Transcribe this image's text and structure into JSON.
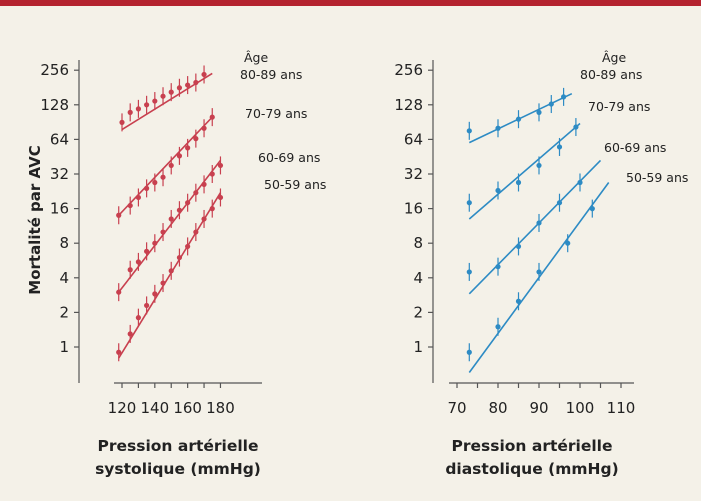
{
  "colors": {
    "topbar": "#b4232f",
    "background": "#f4f1e8",
    "left_series": "#c8404f",
    "right_series": "#2d8bc4"
  },
  "chart_data": [
    {
      "type": "scatter",
      "title": "",
      "ylabel": "Mortalité par AVC",
      "xlabel_lines": [
        "Pression artérielle",
        "systolique (mmHg)"
      ],
      "xticks": [
        120,
        140,
        160,
        180
      ],
      "yticks": [
        1,
        2,
        4,
        8,
        16,
        32,
        64,
        128,
        256
      ],
      "xlim": [
        115,
        182
      ],
      "ylim": [
        0.5,
        256
      ],
      "y_scale": "log2",
      "legend_title": "Âge",
      "series": [
        {
          "name": "80-89 ans",
          "points": [
            [
              120,
              90
            ],
            [
              125,
              110
            ],
            [
              130,
              118
            ],
            [
              135,
              128
            ],
            [
              140,
              138
            ],
            [
              145,
              152
            ],
            [
              150,
              165
            ],
            [
              155,
              180
            ],
            [
              160,
              190
            ],
            [
              165,
              200
            ],
            [
              170,
              235
            ]
          ],
          "fit": [
            [
              120,
              78
            ],
            [
              175,
              240
            ]
          ]
        },
        {
          "name": "70-79 ans",
          "points": [
            [
              118,
              14
            ],
            [
              125,
              17
            ],
            [
              130,
              20
            ],
            [
              135,
              24
            ],
            [
              140,
              27
            ],
            [
              145,
              30
            ],
            [
              150,
              38
            ],
            [
              155,
              46
            ],
            [
              160,
              54
            ],
            [
              165,
              65
            ],
            [
              170,
              80
            ],
            [
              175,
              100
            ]
          ],
          "fit": [
            [
              118,
              14
            ],
            [
              175,
              100
            ]
          ]
        },
        {
          "name": "60-69 ans",
          "points": [
            [
              118,
              3
            ],
            [
              125,
              4.7
            ],
            [
              130,
              5.5
            ],
            [
              135,
              6.8
            ],
            [
              140,
              8
            ],
            [
              145,
              10
            ],
            [
              150,
              13
            ],
            [
              155,
              15.5
            ],
            [
              160,
              18
            ],
            [
              165,
              22
            ],
            [
              170,
              26
            ],
            [
              175,
              32
            ],
            [
              180,
              38
            ]
          ],
          "fit": [
            [
              118,
              3
            ],
            [
              180,
              42
            ]
          ]
        },
        {
          "name": "50-59 ans",
          "points": [
            [
              118,
              0.9
            ],
            [
              125,
              1.3
            ],
            [
              130,
              1.8
            ],
            [
              135,
              2.3
            ],
            [
              140,
              2.9
            ],
            [
              145,
              3.6
            ],
            [
              150,
              4.6
            ],
            [
              155,
              6
            ],
            [
              160,
              7.5
            ],
            [
              165,
              10
            ],
            [
              170,
              13
            ],
            [
              175,
              16
            ],
            [
              180,
              20
            ]
          ],
          "fit": [
            [
              118,
              0.8
            ],
            [
              180,
              22
            ]
          ]
        }
      ]
    },
    {
      "type": "scatter",
      "title": "",
      "ylabel": "",
      "xlabel_lines": [
        "Pression artérielle",
        "diastolique (mmHg)"
      ],
      "xticks": [
        70,
        80,
        90,
        100,
        110
      ],
      "yticks": [
        1,
        2,
        4,
        8,
        16,
        32,
        64,
        128,
        256
      ],
      "xlim": [
        67,
        113
      ],
      "ylim": [
        0.5,
        256
      ],
      "y_scale": "log2",
      "legend_title": "Âge",
      "series": [
        {
          "name": "80-89 ans",
          "points": [
            [
              73,
              76
            ],
            [
              80,
              80
            ],
            [
              85,
              96
            ],
            [
              90,
              110
            ],
            [
              93,
              130
            ],
            [
              96,
              150
            ]
          ],
          "fit": [
            [
              73,
              60
            ],
            [
              98,
              160
            ]
          ]
        },
        {
          "name": "70-79 ans",
          "points": [
            [
              73,
              18
            ],
            [
              80,
              23
            ],
            [
              85,
              27
            ],
            [
              90,
              38
            ],
            [
              95,
              55
            ],
            [
              99,
              82
            ]
          ],
          "fit": [
            [
              73,
              13
            ],
            [
              100,
              88
            ]
          ]
        },
        {
          "name": "60-69 ans",
          "points": [
            [
              73,
              4.5
            ],
            [
              80,
              5
            ],
            [
              85,
              7.5
            ],
            [
              90,
              12
            ],
            [
              95,
              18
            ],
            [
              100,
              27
            ]
          ],
          "fit": [
            [
              73,
              2.9
            ],
            [
              105,
              42
            ]
          ]
        },
        {
          "name": "50-59 ans",
          "points": [
            [
              73,
              0.9
            ],
            [
              80,
              1.5
            ],
            [
              85,
              2.5
            ],
            [
              90,
              4.5
            ],
            [
              97,
              8
            ],
            [
              103,
              16
            ]
          ],
          "fit": [
            [
              73,
              0.6
            ],
            [
              107,
              27
            ]
          ]
        }
      ]
    }
  ]
}
